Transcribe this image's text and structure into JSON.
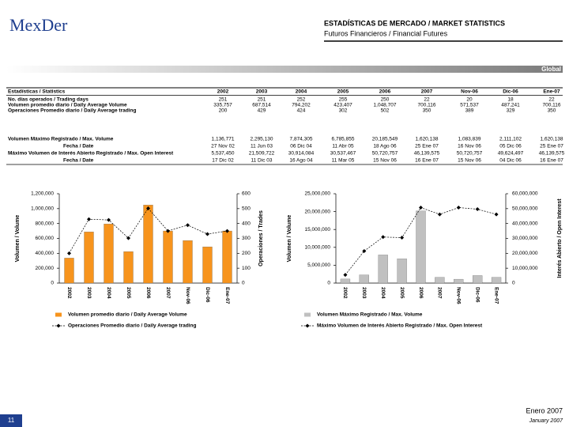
{
  "header": {
    "logo": "MexDer",
    "title": "ESTADÍSTICAS DE MERCADO / MARKET STATISTICS",
    "subtitle": "Futuros Financieros / Financial Futures",
    "section": "Global"
  },
  "table": {
    "columns": [
      "Estadísticas / Statistics",
      "2002",
      "2003",
      "2004",
      "2005",
      "2006",
      "2007",
      "Nov-06",
      "Dic-06",
      "Ene-07"
    ],
    "rows": [
      [
        "No. días operados / Trading days",
        "251",
        "251",
        "252",
        "255",
        "250",
        "22",
        "20",
        "18",
        "22"
      ],
      [
        "Volumen promedio diario / Daily Average Volume",
        "335,757",
        "687,514",
        "794,202",
        "423,407",
        "1,048,707",
        "700,116",
        "571,537",
        "487,241",
        "700,116"
      ],
      [
        "Operaciones Promedio diario / Daily Average trading",
        "200",
        "429",
        "424",
        "302",
        "502",
        "350",
        "389",
        "329",
        "350"
      ],
      [
        "Volumen Máximo Registrado / Max. Volume",
        "1,136,771",
        "2,295,130",
        "7,874,305",
        "6,785,855",
        "20,185,549",
        "1,620,138",
        "1,083,839",
        "2,111,102",
        "1,620,138"
      ],
      [
        "Fecha / Date",
        "27 Nov 02",
        "11 Jun 03",
        "06 Dic 04",
        "11 Abr 05",
        "18 Ago 06",
        "25 Ene 07",
        "16 Nov 06",
        "05 Dic 06",
        "25 Ene 07"
      ],
      [
        "Máximo Volumen de Interés Abierto Registrado / Max. Open Interest",
        "5,537,450",
        "21,509,722",
        "30,914,084",
        "30,537,467",
        "50,720,757",
        "46,139,575",
        "50,720,757",
        "49,624,497",
        "46,139,575"
      ],
      [
        "Fecha / Date",
        "17 Dic 02",
        "11 Dic 03",
        "16 Ago 04",
        "11 Mar 05",
        "15 Nov 06",
        "16 Ene 07",
        "15 Nov 06",
        "04 Dic 06",
        "16 Ene 07"
      ]
    ]
  },
  "chart_data": [
    {
      "type": "bar",
      "categories": [
        "2002",
        "2003",
        "2004",
        "2005",
        "2006",
        "2007",
        "Nov-06",
        "Dic-06",
        "Ene-07"
      ],
      "ylabel": "Volumen / Volume",
      "y2label": "Operaciones / Trades",
      "ylim": [
        0,
        1200000
      ],
      "yticks": [
        0,
        {
          "value": 200000,
          "label": "200,000"
        },
        {
          "value": 400000,
          "label": "400,000"
        },
        {
          "value": 600000,
          "label": "600,000"
        },
        {
          "value": 800000,
          "label": "800,000"
        },
        {
          "value": 1000000,
          "label": "1,000,000"
        },
        {
          "value": 1200000,
          "label": "1,200,000"
        }
      ],
      "y2lim": [
        0,
        600
      ],
      "y2ticks": [
        0,
        100,
        200,
        300,
        400,
        500,
        600
      ],
      "series": [
        {
          "name": "Volumen promedio diario / Daily Average Volume",
          "type": "bar",
          "color": "#f7941d",
          "values": [
            335757,
            687514,
            794202,
            423407,
            1048707,
            700116,
            571537,
            487241,
            700116
          ]
        },
        {
          "name": "Operaciones Promedio diario / Daily Average trading",
          "type": "line",
          "axis": "y2",
          "color": "#000000",
          "values": [
            200,
            429,
            424,
            302,
            502,
            350,
            389,
            329,
            350
          ]
        }
      ]
    },
    {
      "type": "bar",
      "categories": [
        "2002",
        "2003",
        "2004",
        "2005",
        "2006",
        "2007",
        "Nov-06",
        "Dic-06",
        "Ene-07"
      ],
      "ylabel": "Volumen / Volume",
      "y2label": "Interés Abierto / Open Interest",
      "ylim": [
        0,
        25000000
      ],
      "yticks": [
        0,
        {
          "value": 5000000,
          "label": "5,000,000"
        },
        {
          "value": 10000000,
          "label": "10,000,000"
        },
        {
          "value": 15000000,
          "label": "15,000,000"
        },
        {
          "value": 20000000,
          "label": "20,000,000"
        },
        {
          "value": 25000000,
          "label": "25,000,000"
        }
      ],
      "y2lim": [
        0,
        60000000
      ],
      "y2ticks": [
        0,
        {
          "value": 10000000,
          "label": "10,000,000"
        },
        {
          "value": 20000000,
          "label": "20,000,000"
        },
        {
          "value": 30000000,
          "label": "30,000,000"
        },
        {
          "value": 40000000,
          "label": "40,000,000"
        },
        {
          "value": 50000000,
          "label": "50,000,000"
        },
        {
          "value": 60000000,
          "label": "60,000,000"
        }
      ],
      "series": [
        {
          "name": "Volumen Máximo Registrado / Max. Volume",
          "type": "bar",
          "color": "#c0c0c0",
          "values": [
            1136771,
            2295130,
            7874305,
            6785855,
            20185549,
            1620138,
            1083839,
            2111102,
            1620138
          ]
        },
        {
          "name": "Máximo Volumen de Interés Abierto Registrado / Max. Open Interest",
          "type": "line",
          "axis": "y2",
          "color": "#000000",
          "values": [
            5537450,
            21509722,
            30914084,
            30537467,
            50720757,
            46139575,
            50720757,
            49624497,
            46139575
          ]
        }
      ]
    }
  ],
  "footer": {
    "month": "Enero 2007",
    "month_en": "January 2007",
    "page": "11"
  }
}
